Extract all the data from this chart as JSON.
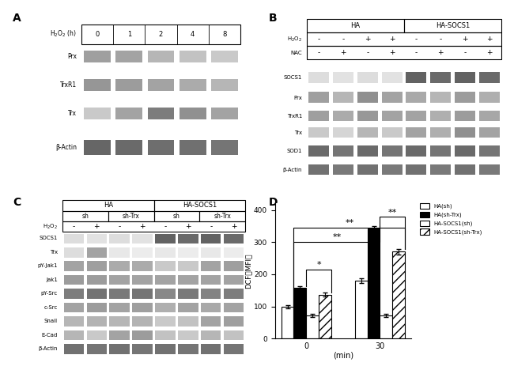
{
  "panel_A": {
    "label": "A",
    "columns": [
      "0",
      "1",
      "2",
      "4",
      "8"
    ],
    "rows": [
      "Prx",
      "TrxR1",
      "Trx",
      "β-Actin"
    ],
    "band_intensities": [
      [
        0.5,
        0.48,
        0.38,
        0.32,
        0.28
      ],
      [
        0.55,
        0.52,
        0.48,
        0.44,
        0.38
      ],
      [
        0.28,
        0.48,
        0.68,
        0.58,
        0.48
      ],
      [
        0.8,
        0.78,
        0.76,
        0.75,
        0.72
      ]
    ]
  },
  "panel_B": {
    "label": "B",
    "header1_labels": [
      "HA",
      "HA-SOCS1"
    ],
    "h2o2_signs": [
      "-",
      "-",
      "+",
      "+",
      "-",
      "-",
      "+",
      "+"
    ],
    "nac_signs": [
      "-",
      "+",
      "-",
      "+",
      "-",
      "+",
      "-",
      "+"
    ],
    "rows": [
      "SOCS1",
      "Prx",
      "TrxR1",
      "Trx",
      "SOD1",
      "β-Actin"
    ],
    "band_intensities": [
      [
        0.18,
        0.15,
        0.18,
        0.15,
        0.82,
        0.78,
        0.82,
        0.78
      ],
      [
        0.5,
        0.38,
        0.58,
        0.48,
        0.45,
        0.38,
        0.52,
        0.42
      ],
      [
        0.5,
        0.44,
        0.54,
        0.48,
        0.48,
        0.42,
        0.52,
        0.46
      ],
      [
        0.28,
        0.22,
        0.38,
        0.28,
        0.48,
        0.42,
        0.58,
        0.48
      ],
      [
        0.78,
        0.72,
        0.78,
        0.72,
        0.78,
        0.72,
        0.78,
        0.72
      ],
      [
        0.74,
        0.7,
        0.74,
        0.7,
        0.74,
        0.7,
        0.74,
        0.7
      ]
    ]
  },
  "panel_C": {
    "label": "C",
    "header1_labels": [
      "HA",
      "HA-SOCS1"
    ],
    "header2_labels": [
      "sh",
      "sh-Trx",
      "sh",
      "sh-Trx"
    ],
    "h2o2_signs": [
      "-",
      "+",
      "-",
      "+",
      "-",
      "+",
      "-",
      "+"
    ],
    "rows": [
      "SOCS1",
      "Trx",
      "pY-Jak1",
      "Jak1",
      "pY-Src",
      "c-Src",
      "Snail",
      "E-Cad",
      "β-Actin"
    ],
    "band_intensities": [
      [
        0.18,
        0.15,
        0.18,
        0.15,
        0.82,
        0.78,
        0.82,
        0.78
      ],
      [
        0.18,
        0.48,
        0.12,
        0.1,
        0.12,
        0.1,
        0.12,
        0.1
      ],
      [
        0.48,
        0.5,
        0.44,
        0.44,
        0.28,
        0.28,
        0.48,
        0.5
      ],
      [
        0.52,
        0.52,
        0.48,
        0.48,
        0.48,
        0.48,
        0.48,
        0.48
      ],
      [
        0.68,
        0.73,
        0.7,
        0.72,
        0.62,
        0.7,
        0.65,
        0.68
      ],
      [
        0.48,
        0.52,
        0.48,
        0.5,
        0.42,
        0.48,
        0.45,
        0.48
      ],
      [
        0.38,
        0.4,
        0.38,
        0.4,
        0.28,
        0.32,
        0.48,
        0.5
      ],
      [
        0.38,
        0.28,
        0.48,
        0.52,
        0.32,
        0.28,
        0.38,
        0.32
      ],
      [
        0.74,
        0.72,
        0.74,
        0.72,
        0.74,
        0.72,
        0.74,
        0.72
      ]
    ]
  },
  "panel_D": {
    "label": "D",
    "ylabel": "DCF（MFI）",
    "xlabel": "(min)",
    "xtick_labels": [
      "0",
      "30"
    ],
    "ylim": [
      0,
      420
    ],
    "yticks": [
      0,
      100,
      200,
      300,
      400
    ],
    "groups": [
      "0",
      "30"
    ],
    "series": [
      {
        "name": "HA(sh)",
        "color": "white",
        "edgecolor": "black",
        "hatch": "",
        "values": [
          100,
          180
        ]
      },
      {
        "name": "HA(sh-Trx)",
        "color": "black",
        "edgecolor": "black",
        "hatch": "",
        "values": [
          157,
          342
        ]
      },
      {
        "name": "HA-SOCS1(sh)",
        "color": "white",
        "edgecolor": "black",
        "hatch": "",
        "values": [
          72,
          72
        ]
      },
      {
        "name": "HA-SOCS1(sh-Trx)",
        "color": "white",
        "edgecolor": "black",
        "hatch": "///",
        "values": [
          137,
          270
        ]
      }
    ],
    "errors": [
      [
        5,
        8
      ],
      [
        6,
        7
      ],
      [
        4,
        5
      ],
      [
        5,
        8
      ]
    ]
  }
}
